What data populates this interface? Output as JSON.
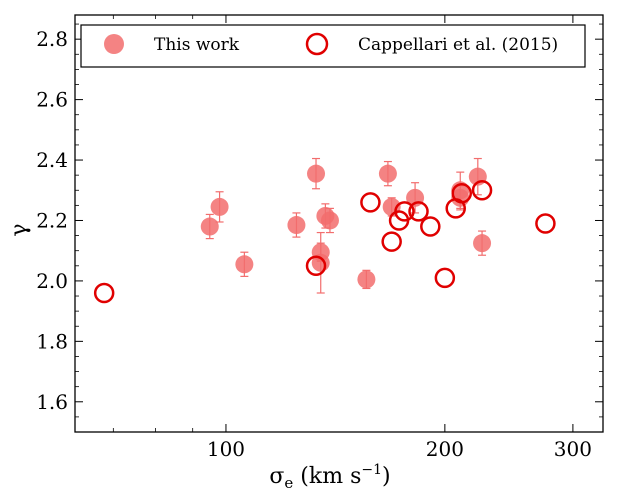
{
  "chart_data": {
    "type": "scatter",
    "xlabel": "σe (km s−1)",
    "ylabel": "γ",
    "xscale": "log",
    "xlim": [
      62,
      330
    ],
    "ylim": [
      1.5,
      2.88
    ],
    "xticks": [
      100,
      200,
      300
    ],
    "xtick_labels": [
      "100",
      "200",
      "300"
    ],
    "yticks": [
      1.6,
      1.8,
      2.0,
      2.2,
      2.4,
      2.6,
      2.8
    ],
    "ytick_labels": [
      "1.6",
      "1.8",
      "2.0",
      "2.2",
      "2.4",
      "2.6",
      "2.8"
    ],
    "grid": false,
    "legend_position": "top",
    "series": [
      {
        "name": "This work",
        "marker": "filled-circle",
        "color": "#f26d6d",
        "points": [
          {
            "x": 95,
            "y": 2.18,
            "err": 0.04
          },
          {
            "x": 98,
            "y": 2.245,
            "err": 0.05
          },
          {
            "x": 106,
            "y": 2.055,
            "err": 0.04
          },
          {
            "x": 125,
            "y": 2.185,
            "err": 0.04
          },
          {
            "x": 133,
            "y": 2.355,
            "err": 0.05
          },
          {
            "x": 135,
            "y": 2.095,
            "err": 0.03
          },
          {
            "x": 135,
            "y": 2.06,
            "err": 0.1
          },
          {
            "x": 137,
            "y": 2.215,
            "err": 0.04
          },
          {
            "x": 139,
            "y": 2.2,
            "err": 0.04
          },
          {
            "x": 156,
            "y": 2.005,
            "err": 0.03
          },
          {
            "x": 167,
            "y": 2.355,
            "err": 0.04
          },
          {
            "x": 169,
            "y": 2.245,
            "err": 0.03
          },
          {
            "x": 182,
            "y": 2.275,
            "err": 0.05
          },
          {
            "x": 210,
            "y": 2.275,
            "err": 0.04
          },
          {
            "x": 210,
            "y": 2.3,
            "err": 0.06
          },
          {
            "x": 222,
            "y": 2.345,
            "err": 0.06
          },
          {
            "x": 225,
            "y": 2.125,
            "err": 0.04
          }
        ]
      },
      {
        "name": "Cappellari et al. (2015)",
        "marker": "open-circle",
        "color": "#e00000",
        "points": [
          {
            "x": 68,
            "y": 1.96
          },
          {
            "x": 133,
            "y": 2.05
          },
          {
            "x": 158,
            "y": 2.26
          },
          {
            "x": 169,
            "y": 2.13
          },
          {
            "x": 173,
            "y": 2.2
          },
          {
            "x": 176,
            "y": 2.23
          },
          {
            "x": 184,
            "y": 2.23
          },
          {
            "x": 191,
            "y": 2.18
          },
          {
            "x": 200,
            "y": 2.01
          },
          {
            "x": 207,
            "y": 2.24
          },
          {
            "x": 211,
            "y": 2.29
          },
          {
            "x": 225,
            "y": 2.3
          },
          {
            "x": 275,
            "y": 2.19
          }
        ]
      }
    ]
  }
}
